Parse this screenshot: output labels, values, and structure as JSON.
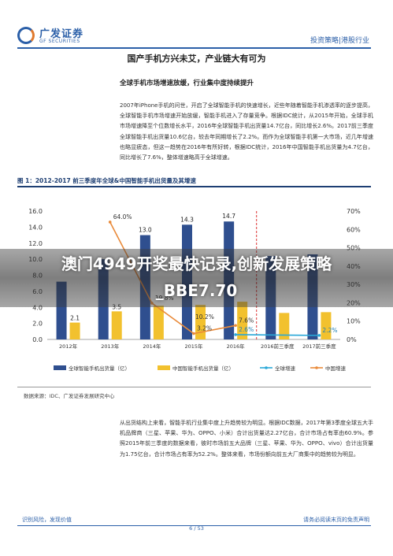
{
  "header": {
    "brand_cn": "广发证券",
    "brand_en": "GF SECURITIES",
    "section": "投资策略|港股行业"
  },
  "doc": {
    "title": "国产手机方兴未艾，产业链大有可为",
    "subtitle": "全球手机市场增速放缓，行业集中度持续提升",
    "para1": "2007年iPhone手机的问世，开启了全球智能手机的快速增长，近些年随着智能手机渗透率的逐步提高，全球智能手机市场增速开始放缓，智能手机进入了存量竞争。根据IDC统计，从2015年开始，全球手机市场增速降至个位数增长水平，2016年全球智能手机出货量14.7亿台，同比增长2.6%。2017前三季度全球智能手机出货量10.6亿台，较去年同期增长了2.2%。而作为全球智能手机第一大市场，近几年增速也略显疲态，但这一趋势在2016年有所好转，根据IDC统计，2016年中国智能手机出货量为4.7亿台，同比增长了7.6%，整体增速略高于全球增速。",
    "para2": "从出货结构上来看，智能手机行业集中度上升趋势较为明显。根据IDC数据，2017年第3季度全球五大手机品牌商（三星、苹果、华为、OPPO、小米）合计出货量达2.27亿台，合计市场占有率由60.9%。参照2015年前三季度的数据来看，彼时市场前五大品牌（三星、苹果、华为、OPPO、vivo）合计出货量为1.75亿台，合计市场占有率为52.2%。整体来看，市场份额向前五大厂商集中的趋势较为明显。",
    "figure_title": "图 1：2012-2017 前三季度年全球&中国智能手机出货量及其增速",
    "source": "数据来源：IDC、广发证券发展研究中心",
    "footer_left": "识别风险，发现价值",
    "footer_right": "请务必阅读末页的免责声明",
    "page": "6 / 53"
  },
  "banner": {
    "line1": "澳门4949开奖最快记录,创新发展策略",
    "line2": "_BBE7.70"
  },
  "chart_data": {
    "type": "bar",
    "categories": [
      "2012年",
      "2013年",
      "2014年",
      "2015年",
      "2016年",
      "2016前三季度",
      "2017前三季度"
    ],
    "series": [
      {
        "name": "全球智能手机出货量（亿）",
        "kind": "bar",
        "axis": "left",
        "color": "#2f4f8f",
        "values": [
          7.2,
          10.0,
          13.0,
          14.3,
          14.7,
          10.4,
          10.6
        ],
        "labels": [
          "",
          "",
          "13.0",
          "14.3",
          "14.7",
          "",
          ""
        ]
      },
      {
        "name": "中国智能手机出货量（亿）",
        "kind": "bar",
        "axis": "left",
        "color": "#f2c12e",
        "values": [
          2.1,
          3.5,
          4.2,
          4.3,
          4.7,
          3.3,
          3.4
        ],
        "labels": [
          "2.1",
          "3.5",
          "",
          "",
          "",
          "",
          ""
        ]
      },
      {
        "name": "全球增速",
        "kind": "line",
        "axis": "right",
        "color": "#2aa8d8",
        "values": [
          null,
          null,
          null,
          null,
          2.6,
          null,
          2.2
        ],
        "labels": [
          "",
          "",
          "",
          "",
          "2.6%",
          "",
          "2.2%"
        ]
      },
      {
        "name": "中国增速",
        "kind": "line",
        "axis": "right",
        "color": "#e98a3a",
        "values": [
          null,
          64.0,
          19.8,
          3.2,
          7.6,
          null,
          null
        ],
        "labels": [
          "",
          "64.0%",
          "19.8%",
          "3.2%",
          "7.6%",
          "",
          ""
        ]
      }
    ],
    "extra_labels": [
      {
        "category": "2015年",
        "text": "10.2%"
      }
    ],
    "yleft": {
      "min": 0,
      "max": 16,
      "ticks": [
        "0.0",
        "2.0",
        "4.0",
        "6.0",
        "8.0",
        "10.0",
        "12.0",
        "14.0",
        "16.0"
      ]
    },
    "yright": {
      "min": 0,
      "max": 70,
      "ticks": [
        "0%",
        "10%",
        "20%",
        "30%",
        "40%",
        "50%",
        "60%",
        "70%"
      ]
    }
  }
}
